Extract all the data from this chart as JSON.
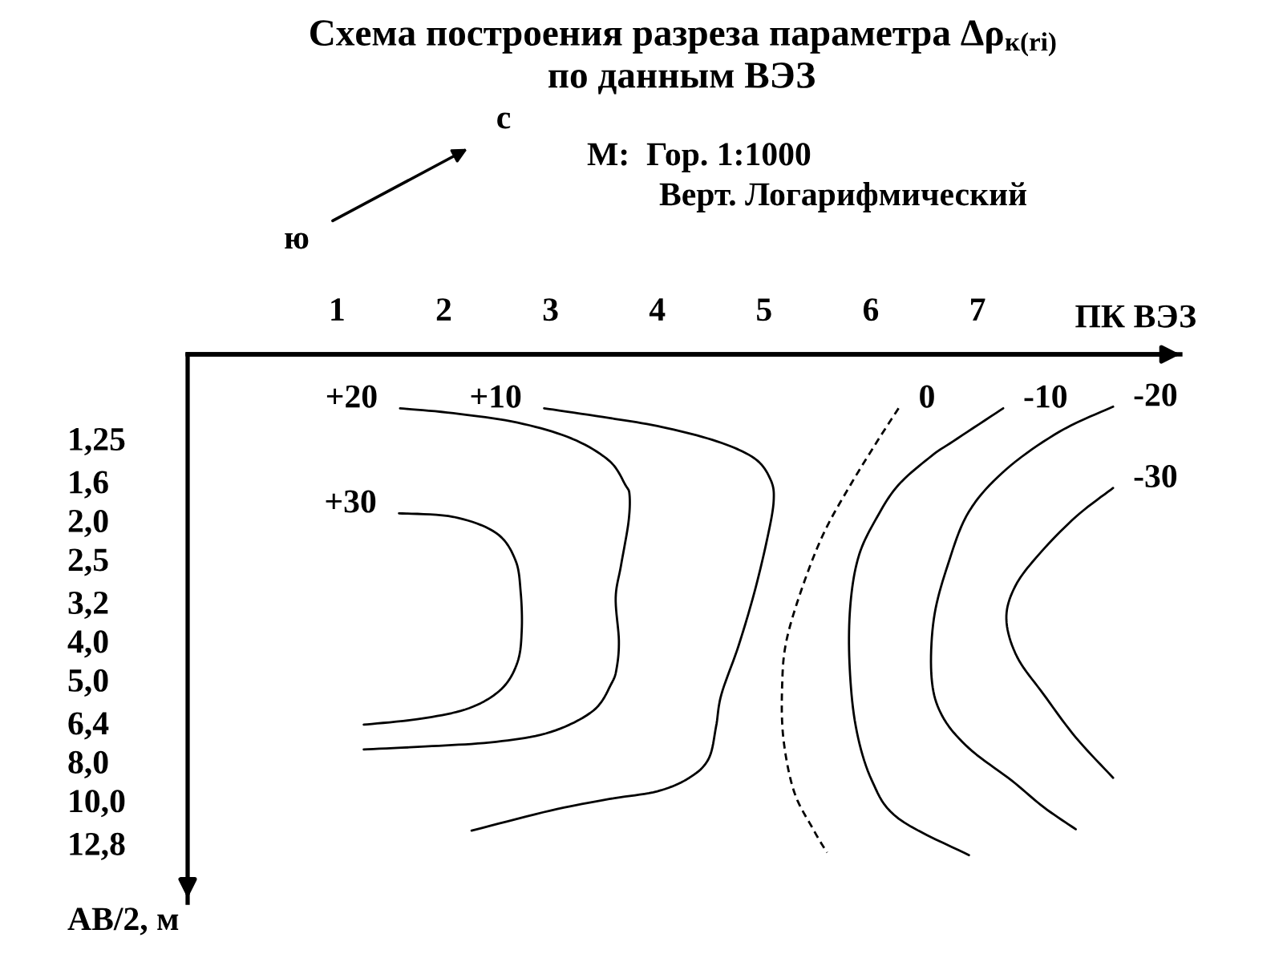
{
  "chart_data": {
    "type": "line",
    "title": "Схема построения разреза параметра Δρ$_{к(ri)}$",
    "subtitle": "по данным ВЭЗ",
    "xlabel": "ПК ВЭЗ",
    "ylabel": "АВ/2, м",
    "annotations": [
      "с",
      "ю",
      "М:  Гор. 1:1000",
      "Верт. Логарифмический"
    ],
    "log": "y",
    "xlim": [
      -0.4,
      8.9
    ],
    "xticks": [
      1,
      2,
      3,
      4,
      5,
      6,
      7
    ],
    "ylim": [
      18,
      0.77
    ],
    "yticks": [
      {
        "value": 1.25,
        "label": "1,25"
      },
      {
        "value": 1.6,
        "label": "1,6"
      },
      {
        "value": 2.0,
        "label": "2,0"
      },
      {
        "value": 2.5,
        "label": "2,5"
      },
      {
        "value": 3.2,
        "label": "3,2"
      },
      {
        "value": 4.0,
        "label": "4,0"
      },
      {
        "value": 5.0,
        "label": "5,0"
      },
      {
        "value": 6.4,
        "label": "6,4"
      },
      {
        "value": 8.0,
        "label": "8,0"
      },
      {
        "value": 10.0,
        "label": "10,0"
      },
      {
        "value": 12.8,
        "label": "12,8"
      }
    ],
    "line_style": "solid",
    "series": [
      {
        "name": "+30",
        "color": "#000000",
        "x": [
          1.58,
          2.09,
          2.49,
          2.67,
          2.72,
          2.73,
          2.69,
          2.54,
          2.24,
          1.79,
          1.25
        ],
        "values": [
          1.92,
          1.96,
          2.15,
          2.51,
          3.02,
          3.76,
          4.52,
          5.27,
          5.88,
          6.25,
          6.47
        ]
      },
      {
        "name": "+20",
        "color": "#000000",
        "x": [
          1.59,
          2.09,
          2.69,
          3.2,
          3.55,
          3.7,
          3.74,
          3.73,
          3.66,
          3.61,
          3.64,
          3.62,
          3.57,
          3.4,
          3.0,
          2.49,
          1.89,
          1.25
        ],
        "values": [
          1.05,
          1.08,
          1.14,
          1.25,
          1.42,
          1.63,
          1.73,
          2.02,
          2.59,
          3.12,
          3.99,
          4.66,
          5.11,
          5.97,
          6.75,
          7.14,
          7.32,
          7.46
        ]
      },
      {
        "name": "+10",
        "color": "#000000",
        "x": [
          2.94,
          3.55,
          4.05,
          4.56,
          4.91,
          5.06,
          5.09,
          5.03,
          4.91,
          4.76,
          4.6,
          4.55,
          4.48,
          4.3,
          4.0,
          3.55,
          3.0,
          2.26
        ],
        "values": [
          1.05,
          1.11,
          1.17,
          1.27,
          1.4,
          1.58,
          1.79,
          2.22,
          3.02,
          4.12,
          5.44,
          6.55,
          7.88,
          8.78,
          9.49,
          9.92,
          10.6,
          11.9
        ]
      },
      {
        "name": "0",
        "color": "#000000",
        "line_style": "dashed",
        "x": [
          6.26,
          6.06,
          5.81,
          5.56,
          5.36,
          5.21,
          5.17,
          5.18,
          5.28,
          5.46,
          5.59
        ],
        "values": [
          1.05,
          1.27,
          1.63,
          2.15,
          2.93,
          3.99,
          5.11,
          6.96,
          9.49,
          11.8,
          13.5
        ]
      },
      {
        "name": "-10",
        "color": "#000000",
        "x": [
          7.24,
          6.77,
          6.57,
          6.26,
          6.06,
          5.89,
          5.81,
          5.8,
          5.86,
          6.01,
          6.26,
          6.92
        ],
        "values": [
          1.05,
          1.27,
          1.38,
          1.63,
          1.96,
          2.44,
          3.22,
          4.52,
          6.55,
          8.92,
          11.1,
          13.7
        ]
      },
      {
        "name": "-20",
        "color": "#000000",
        "x": [
          8.27,
          7.77,
          7.27,
          6.92,
          6.72,
          6.59,
          6.57,
          6.67,
          6.92,
          7.32,
          7.62,
          7.92
        ],
        "values": [
          1.04,
          1.2,
          1.49,
          1.9,
          2.59,
          3.53,
          4.96,
          6.16,
          7.41,
          8.92,
          10.4,
          11.8
        ]
      },
      {
        "name": "-30",
        "color": "#000000",
        "x": [
          8.27,
          7.92,
          7.57,
          7.35,
          7.27,
          7.37,
          7.62,
          7.92,
          8.27
        ],
        "values": [
          1.66,
          1.96,
          2.44,
          2.93,
          3.53,
          4.38,
          5.44,
          6.96,
          8.78
        ]
      }
    ]
  }
}
